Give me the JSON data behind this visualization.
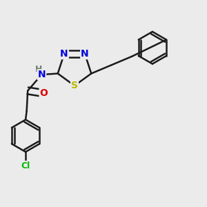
{
  "background_color": "#ebebeb",
  "bond_color": "#1a1a1a",
  "bond_width": 1.8,
  "atom_colors": {
    "N": "#0000dd",
    "S": "#bbbb00",
    "O": "#dd0000",
    "Cl": "#00bb00",
    "H_color": "#708070",
    "C": "#1a1a1a"
  },
  "font_size": 10
}
